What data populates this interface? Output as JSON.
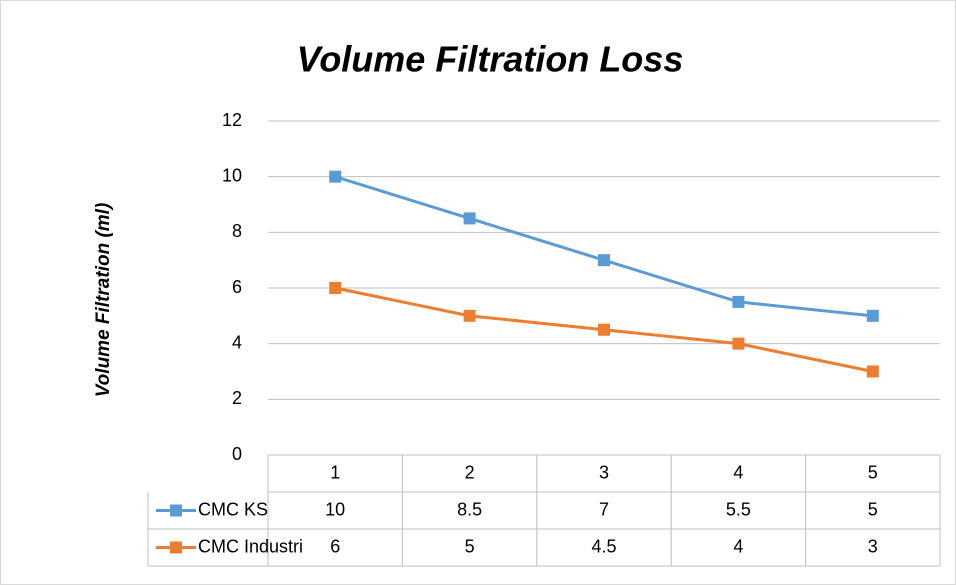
{
  "chart_data": {
    "type": "line",
    "title": "Volume Filtration Loss",
    "y_label": "Volume Filtration (ml)",
    "categories": [
      "1",
      "2",
      "3",
      "4",
      "5"
    ],
    "series": [
      {
        "name": "CMC KS",
        "color": "#5b9bd5",
        "values": [
          10,
          8.5,
          7,
          5.5,
          5
        ]
      },
      {
        "name": "CMC Industri",
        "color": "#ed7d31",
        "values": [
          6,
          5,
          4.5,
          4,
          3
        ]
      }
    ],
    "ylim": [
      0,
      12
    ],
    "yticks": [
      0,
      2,
      4,
      6,
      8,
      10,
      12
    ],
    "grid": true,
    "data_table": true
  }
}
